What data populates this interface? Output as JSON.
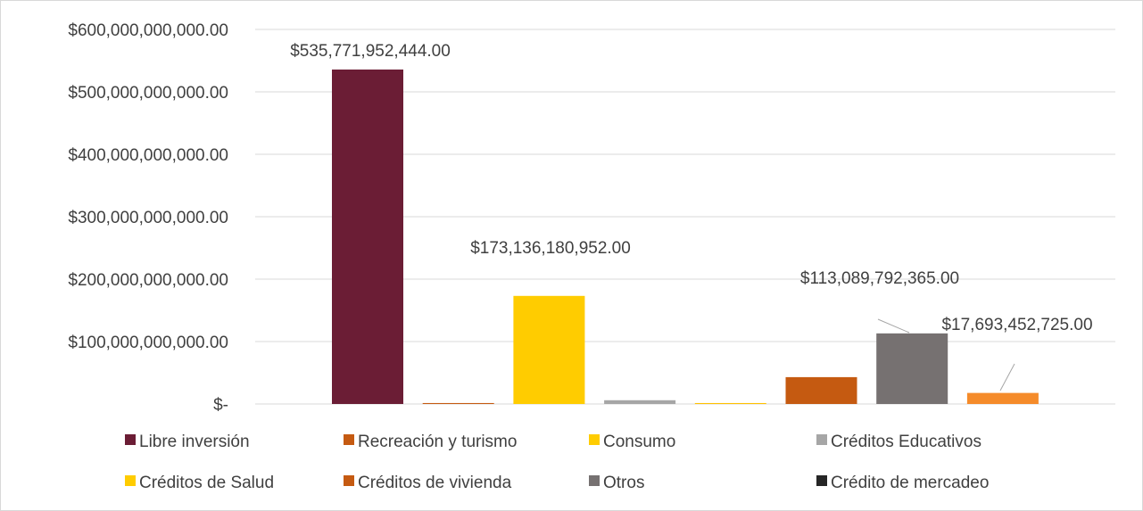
{
  "chart_data": {
    "type": "bar",
    "categories": [
      "Libre inversión",
      "Recreación y turismo",
      "Consumo",
      "Créditos Educativos",
      "Créditos de Salud",
      "Créditos de vivienda",
      "Otros",
      "Crédito de mercadeo"
    ],
    "values": [
      535771952444,
      1500000000,
      173136180952,
      6000000000,
      1500000000,
      43000000000,
      113089792365,
      17693452725
    ],
    "colors": [
      "#6b1d35",
      "#c55a11",
      "#ffcc00",
      "#a6a6a6",
      "#ffc000",
      "#c55a11",
      "#767171",
      "#f58b2a"
    ],
    "data_labels": {
      "0": "$535,771,952,444.00",
      "2": "$173,136,180,952.00",
      "6": "$113,089,792,365.00",
      "7": "$17,693,452,725.00"
    },
    "legend": [
      {
        "label": "Libre inversión",
        "color": "#6b1d35"
      },
      {
        "label": "Recreación y turismo",
        "color": "#c55a11"
      },
      {
        "label": "Consumo",
        "color": "#ffcc00"
      },
      {
        "label": "Créditos Educativos",
        "color": "#a6a6a6"
      },
      {
        "label": "Créditos de Salud",
        "color": "#ffcc00"
      },
      {
        "label": "Créditos de vivienda",
        "color": "#c55a11"
      },
      {
        "label": "Otros",
        "color": "#767171"
      },
      {
        "label": "Crédito de mercadeo",
        "color": "#262626"
      }
    ],
    "y_ticks": [
      0,
      100000000000,
      200000000000,
      300000000000,
      400000000000,
      500000000000,
      600000000000
    ],
    "y_tick_labels": [
      "$-",
      "$100,000,000,000.00",
      "$200,000,000,000.00",
      "$300,000,000,000.00",
      "$400,000,000,000.00",
      "$500,000,000,000.00",
      "$600,000,000,000.00"
    ],
    "ylim": [
      0,
      600000000000
    ],
    "grid": true,
    "legend_position": "bottom",
    "title": "",
    "xlabel": "",
    "ylabel": ""
  }
}
